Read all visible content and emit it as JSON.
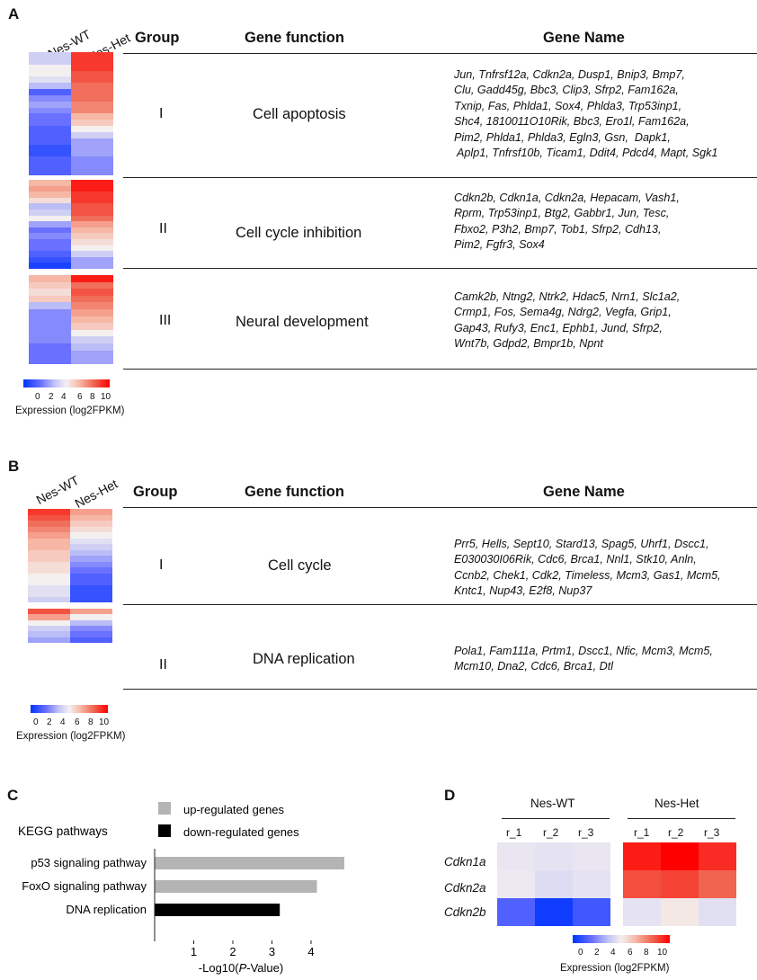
{
  "panel_a": {
    "letter": "A",
    "columns": [
      "Nes-WT",
      "Nes-Het"
    ],
    "headers": {
      "group": "Group",
      "function": "Gene function",
      "genes": "Gene Name"
    },
    "rows": [
      {
        "group": "I",
        "function": "Cell apoptosis",
        "genes": "Jun, Tnfrsf12a, Cdkn2a, Dusp1, Bnip3, Bmp7,\nClu, Gadd45g, Bbc3, Clip3, Sfrp2, Fam162a,\nTxnip, Fas, Phlda1, Sox4, Phlda3, Trp53inp1,\nShc4, 1810011O10Rik, Bbc3, Ero1l, Fam162a,\nPim2, Phlda1, Phlda3, Egln3, Gsn,  Dapk1,\n Aplp1, Tnfrsf10b, Ticam1, Ddit4, Pdcd4, Mapt, Sgk1"
      },
      {
        "group": "II",
        "function": "Cell cycle inhibition",
        "genes": "Cdkn2b, Cdkn1a, Cdkn2a, Hepacam, Vash1,\nRprm, Trp53inp1, Btg2, Gabbr1, Jun, Tesc,\nFbxo2, P3h2, Bmp7, Tob1, Sfrp2, Cdh13,\nPim2, Fgfr3, Sox4"
      },
      {
        "group": "III",
        "function": "Neural development",
        "genes": "Camk2b, Ntng2, Ntrk2, Hdac5, Nrn1, Slc1a2,\nCrmp1, Fos, Sema4g, Ndrg2, Vegfa, Grip1,\nGap43, Rufy3, Enc1, Ephb1, Jund, Sfrp2,\nWnt7b, Gdpd2, Bmpr1b, Npnt"
      }
    ],
    "heatmaps": [
      [
        [
          4,
          9
        ],
        [
          4,
          9
        ],
        [
          5,
          9
        ],
        [
          5,
          8.5
        ],
        [
          4.5,
          8.5
        ],
        [
          3.5,
          8
        ],
        [
          1.5,
          8
        ],
        [
          2.5,
          8
        ],
        [
          3,
          7.5
        ],
        [
          2.5,
          7.5
        ],
        [
          2,
          6.5
        ],
        [
          2,
          6
        ],
        [
          1.5,
          5
        ],
        [
          1.5,
          4
        ],
        [
          1.5,
          3
        ],
        [
          1,
          3
        ],
        [
          1,
          3
        ],
        [
          1.5,
          2.5
        ],
        [
          1.5,
          2.5
        ],
        [
          1.5,
          2.5
        ]
      ],
      [
        [
          6.5,
          9.5
        ],
        [
          7,
          9.5
        ],
        [
          6.5,
          9
        ],
        [
          5.5,
          9
        ],
        [
          3.5,
          8.5
        ],
        [
          4,
          8.5
        ],
        [
          5,
          8
        ],
        [
          3,
          7
        ],
        [
          2,
          6.5
        ],
        [
          2.5,
          6
        ],
        [
          2,
          5.5
        ],
        [
          2,
          5
        ],
        [
          1.5,
          4
        ],
        [
          1,
          3
        ],
        [
          0.5,
          3
        ]
      ],
      [
        [
          6.5,
          9.5
        ],
        [
          6,
          8
        ],
        [
          5.5,
          8.5
        ],
        [
          6,
          8
        ],
        [
          3.5,
          7.5
        ],
        [
          2.5,
          7
        ],
        [
          2.5,
          6.5
        ],
        [
          2.5,
          6
        ],
        [
          2.5,
          5
        ],
        [
          2.5,
          4
        ],
        [
          2,
          3.5
        ],
        [
          2,
          3
        ],
        [
          2,
          3
        ]
      ]
    ],
    "colorbar": {
      "ticks": [
        "0",
        "2",
        "4",
        "6",
        "8",
        "10"
      ],
      "title": "Expression (log2FPKM)"
    }
  },
  "panel_b": {
    "letter": "B",
    "columns": [
      "Nes-WT",
      "Nes-Het"
    ],
    "headers": {
      "group": "Group",
      "function": "Gene function",
      "genes": "Gene Name"
    },
    "rows": [
      {
        "group": "I",
        "function": "Cell cycle",
        "genes": "Prr5, Hells, Sept10, Stard13, Spag5, Uhrf1, Dscc1,\nE030030I06Rik, Cdc6, Brca1, Nnl1, Stk10, Anln,\nCcnb2, Chek1, Cdk2, Timeless, Mcm3, Gas1, Mcm5,\nKntc1, Nup43, E2f8, Nup37"
      },
      {
        "group": "II",
        "function": "DNA replication",
        "genes": "Pola1, Fam111a, Prtm1, Dscc1, Nfic, Mcm3, Mcm5,\nMcm10, Dna2, Cdc6, Brca1, Dtl"
      }
    ],
    "heatmaps": [
      [
        [
          9,
          7
        ],
        [
          8.5,
          6.5
        ],
        [
          8,
          6
        ],
        [
          7.5,
          5.5
        ],
        [
          7,
          5
        ],
        [
          6.5,
          4.5
        ],
        [
          6.5,
          4
        ],
        [
          6,
          3.5
        ],
        [
          6,
          3
        ],
        [
          5.5,
          2.5
        ],
        [
          5.5,
          2
        ],
        [
          5,
          1.5
        ],
        [
          5,
          1.5
        ],
        [
          4.5,
          1
        ],
        [
          4.5,
          1
        ],
        [
          4,
          1
        ]
      ],
      [
        [
          8.5,
          7
        ],
        [
          7,
          5
        ],
        [
          5,
          3.5
        ],
        [
          4,
          2.5
        ],
        [
          3.5,
          2
        ],
        [
          3,
          1.5
        ]
      ]
    ],
    "colorbar": {
      "ticks": [
        "0",
        "2",
        "4",
        "6",
        "8",
        "10"
      ],
      "title": "Expression (log2FPKM)"
    }
  },
  "panel_c": {
    "letter": "C",
    "legend": {
      "up": "up-regulated genes",
      "down": "down-regulated genes",
      "up_color": "#b4b4b4",
      "down_color": "#000000"
    },
    "kegg_label": "KEGG pathways",
    "xlabel_pre": "-Log10(",
    "xlabel_italic": "P",
    "xlabel_post": "-Value)",
    "chart_data": {
      "type": "bar",
      "orientation": "horizontal",
      "categories": [
        "p53 signaling pathway",
        "FoxO signaling pathway",
        "DNA replication"
      ],
      "values": [
        4.85,
        4.15,
        3.2
      ],
      "directions": [
        "up",
        "up",
        "down"
      ],
      "xticks": [
        "1",
        "2",
        "3",
        "4"
      ],
      "xlim": [
        0,
        4.9
      ]
    }
  },
  "panel_d": {
    "letter": "D",
    "groups": [
      "Nes-WT",
      "Nes-Het"
    ],
    "reps": [
      "r_1",
      "r_2",
      "r_3",
      "r_1",
      "r_2",
      "r_3"
    ],
    "genes": [
      "Cdkn1a",
      "Cdkn2a",
      "Cdkn2b"
    ],
    "values": [
      [
        4.7,
        4.6,
        4.7,
        9.5,
        10,
        9.2
      ],
      [
        4.8,
        4.4,
        4.6,
        8.6,
        8.8,
        8.2
      ],
      [
        1.5,
        0.3,
        1.2,
        4.6,
        5.2,
        4.5
      ]
    ],
    "colorbar": {
      "ticks": [
        "0",
        "2",
        "4",
        "6",
        "8",
        "10"
      ],
      "title": "Expression (log2FPKM)"
    }
  }
}
